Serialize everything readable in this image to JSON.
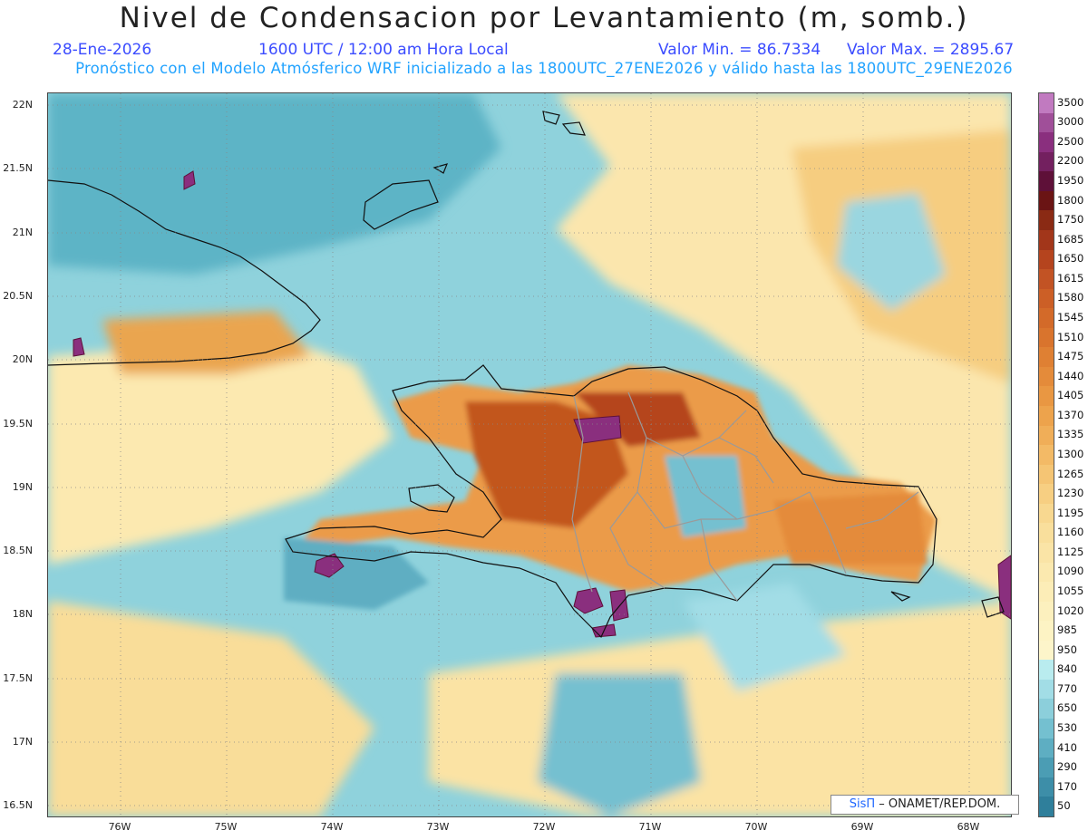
{
  "header": {
    "title": "Nivel de Condensacion por Levantamiento (m, somb.)",
    "date": "28-Ene-2026",
    "time": "1600 UTC / 12:00 am Hora Local",
    "min": "Valor Min. = 86.7334",
    "max": "Valor Max. = 2895.67",
    "run_info": "Pronóstico con el Modelo Atmósferico WRF inicializado a las 1800UTC_27ENE2026 y válido hasta las  1800UTC_29ENE2026"
  },
  "lat_labels": [
    "22N",
    "21.5N",
    "21N",
    "20.5N",
    "20N",
    "19.5N",
    "19N",
    "18.5N",
    "18N",
    "17.5N",
    "17N",
    "16.5N"
  ],
  "lon_labels": [
    "76W",
    "75W",
    "74W",
    "73W",
    "72W",
    "71W",
    "70W",
    "69W",
    "68W"
  ],
  "colorbar": {
    "labels": [
      "3500",
      "3000",
      "2500",
      "2200",
      "1950",
      "1800",
      "1750",
      "1685",
      "1650",
      "1615",
      "1580",
      "1545",
      "1510",
      "1475",
      "1440",
      "1405",
      "1370",
      "1335",
      "1300",
      "1265",
      "1230",
      "1195",
      "1160",
      "1125",
      "1090",
      "1055",
      "1020",
      "985",
      "950",
      "840",
      "770",
      "650",
      "530",
      "410",
      "290",
      "170",
      "50"
    ],
    "colors": [
      "#c17ac0",
      "#a04f99",
      "#8a2f7e",
      "#73205f",
      "#5e1038",
      "#6a1414",
      "#8a2a14",
      "#a2361a",
      "#b5441e",
      "#c25324",
      "#cc5f26",
      "#d36a29",
      "#d9742d",
      "#df8033",
      "#e48b3a",
      "#e99742",
      "#eda34c",
      "#f0ae58",
      "#f3ba66",
      "#f5c574",
      "#f7cf82",
      "#f8d890",
      "#f9df9c",
      "#fae4a6",
      "#fbe9af",
      "#fcedb7",
      "#fcf0be",
      "#fdf3c4",
      "#fdf5ca",
      "#b9ecef",
      "#a2dde6",
      "#8ccfdb",
      "#74c0d0",
      "#5eaec2",
      "#4b9db4",
      "#3d8ea8",
      "#2f7f9b"
    ]
  },
  "credit": {
    "brand": "SisΠ",
    "rest": "– ONAMET/REP.DOM."
  }
}
